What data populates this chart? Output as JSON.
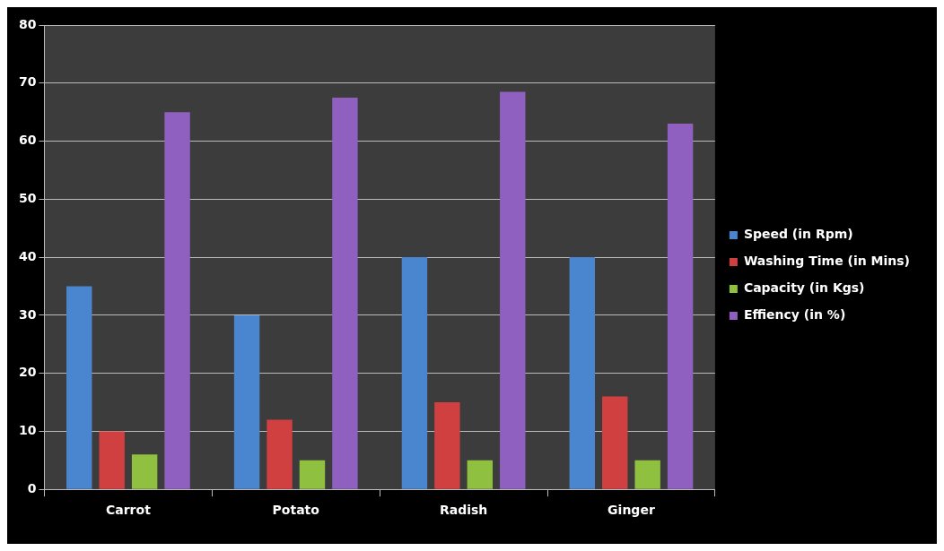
{
  "chart_data": {
    "type": "bar",
    "categories": [
      "Carrot",
      "Potato",
      "Radish",
      "Ginger"
    ],
    "series": [
      {
        "name": "Speed (in Rpm)",
        "color": "#4a86d0",
        "values": [
          35,
          30,
          40,
          40
        ]
      },
      {
        "name": "Washing Time (in Mins)",
        "color": "#d04040",
        "values": [
          10,
          12,
          15,
          16
        ]
      },
      {
        "name": "Capacity (in Kgs)",
        "color": "#90c040",
        "values": [
          6,
          5,
          5,
          5
        ]
      },
      {
        "name": "Effiency (in %)",
        "color": "#9060c0",
        "values": [
          65,
          67.5,
          68.5,
          63
        ]
      }
    ],
    "ylim": [
      0,
      80
    ],
    "yticks": [
      0,
      10,
      20,
      30,
      40,
      50,
      60,
      70,
      80
    ],
    "grid": "y",
    "legend": "right"
  }
}
